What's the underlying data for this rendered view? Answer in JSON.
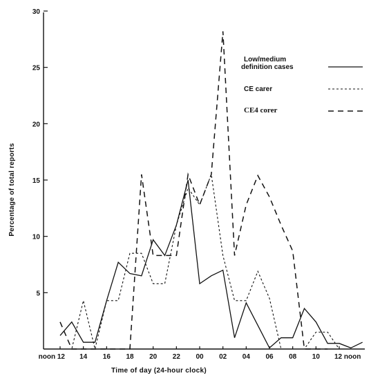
{
  "chart_data": {
    "type": "line",
    "xlabel": "Time of day (24-hour clock)",
    "ylabel": "Percentage of total reports",
    "ylim": [
      0,
      30
    ],
    "yticks": [
      "5",
      "10",
      "15",
      "20",
      "25",
      "30"
    ],
    "xticks": [
      {
        "h": 0,
        "label": "noon 12"
      },
      {
        "h": 2,
        "label": "14"
      },
      {
        "h": 4,
        "label": "16"
      },
      {
        "h": 6,
        "label": "18"
      },
      {
        "h": 8,
        "label": "20"
      },
      {
        "h": 10,
        "label": "22"
      },
      {
        "h": 12,
        "label": "00"
      },
      {
        "h": 14,
        "label": "02"
      },
      {
        "h": 16,
        "label": "04"
      },
      {
        "h": 18,
        "label": "06"
      },
      {
        "h": 20,
        "label": "08"
      },
      {
        "h": 22,
        "label": "10"
      },
      {
        "h": 24,
        "label": "12 noon"
      }
    ],
    "series": [
      {
        "name": "Low/medium definition cases",
        "dash": "solid",
        "points": [
          [
            0,
            1.2
          ],
          [
            1,
            2.4
          ],
          [
            2,
            0.6
          ],
          [
            3,
            0.6
          ],
          [
            4,
            4.3
          ],
          [
            5,
            7.7
          ],
          [
            6,
            6.7
          ],
          [
            7,
            6.5
          ],
          [
            8,
            9.7
          ],
          [
            9,
            8.3
          ],
          [
            10,
            11.0
          ],
          [
            11,
            15.0
          ],
          [
            12,
            5.8
          ],
          [
            13,
            6.5
          ],
          [
            14,
            7.0
          ],
          [
            15,
            1.0
          ],
          [
            16,
            4.1
          ],
          [
            17,
            2.1
          ],
          [
            18,
            0.1
          ],
          [
            19,
            1.0
          ],
          [
            20,
            1.0
          ],
          [
            21,
            3.6
          ],
          [
            22,
            2.4
          ],
          [
            23,
            0.5
          ],
          [
            24,
            0.5
          ],
          [
            25,
            0.1
          ],
          [
            26,
            0.6
          ]
        ]
      },
      {
        "name": "CE carer",
        "dash": "dotted",
        "points": [
          [
            0,
            0.0
          ],
          [
            1,
            0.0
          ],
          [
            2,
            4.3
          ],
          [
            3,
            0.0
          ],
          [
            4,
            4.3
          ],
          [
            5,
            4.3
          ],
          [
            6,
            8.5
          ],
          [
            7,
            8.5
          ],
          [
            8,
            5.8
          ],
          [
            9,
            5.8
          ],
          [
            10,
            11.0
          ],
          [
            11,
            14.3
          ],
          [
            12,
            12.8
          ],
          [
            13,
            15.5
          ],
          [
            14,
            8.3
          ],
          [
            15,
            4.3
          ],
          [
            16,
            4.3
          ],
          [
            17,
            6.9
          ],
          [
            18,
            4.5
          ],
          [
            19,
            0.0
          ],
          [
            20,
            0.0
          ],
          [
            21,
            0.0
          ],
          [
            22,
            1.5
          ],
          [
            23,
            1.5
          ],
          [
            24,
            0.0
          ]
        ]
      },
      {
        "name": "CE4 corer",
        "dash": "dashed",
        "points": [
          [
            0,
            2.4
          ],
          [
            1,
            0.0
          ],
          [
            2,
            0.0
          ],
          [
            3,
            0.0
          ],
          [
            4,
            0.0
          ],
          [
            5,
            0.0
          ],
          [
            6,
            0.0
          ],
          [
            7,
            15.5
          ],
          [
            8,
            8.3
          ],
          [
            9,
            8.3
          ],
          [
            10,
            8.3
          ],
          [
            11,
            15.5
          ],
          [
            12,
            12.8
          ],
          [
            13,
            15.5
          ],
          [
            14,
            28.2
          ],
          [
            15,
            8.3
          ],
          [
            16,
            12.8
          ],
          [
            17,
            15.4
          ],
          [
            18,
            13.5
          ],
          [
            19,
            11.0
          ],
          [
            20,
            8.7
          ],
          [
            21,
            0.0
          ],
          [
            22,
            0.0
          ],
          [
            23,
            0.0
          ]
        ]
      }
    ],
    "legend": {
      "placement": "top-right"
    }
  }
}
